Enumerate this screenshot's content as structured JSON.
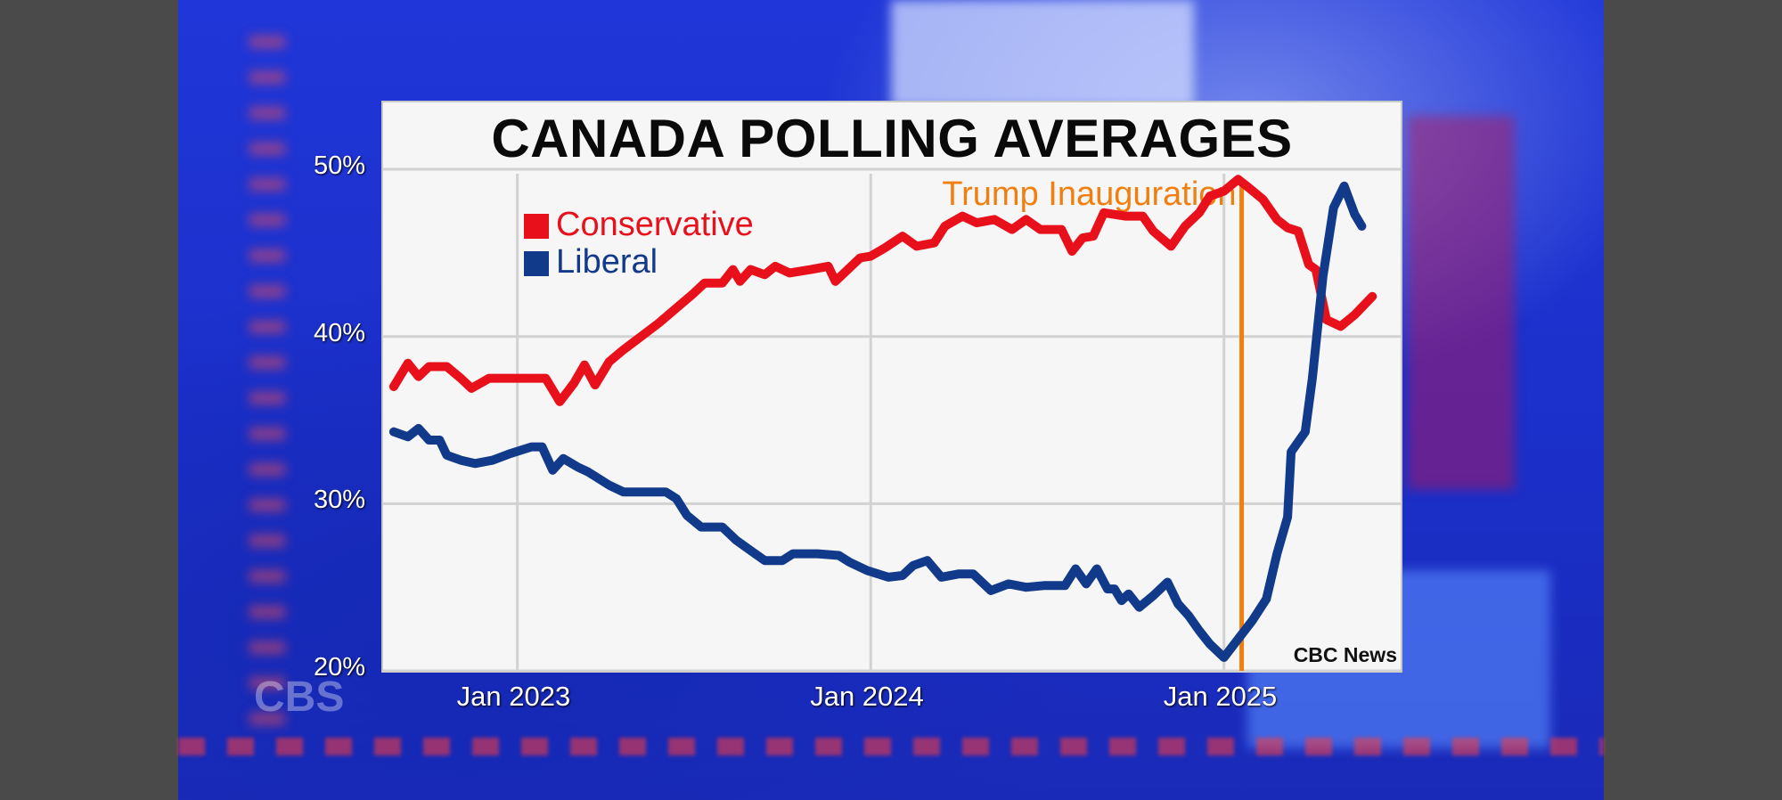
{
  "chart_data": {
    "type": "line",
    "title": "CANADA POLLING AVERAGES",
    "y_tick_labels": [
      "20%",
      "30%",
      "40%",
      "50%"
    ],
    "y_ticks": [
      20,
      30,
      40,
      50
    ],
    "ylim": [
      20,
      54
    ],
    "x_tick_labels": [
      "Jan 2023",
      "Jan 2024",
      "Jan 2025"
    ],
    "x_ticks": [
      2023.0,
      2024.0,
      2025.0
    ],
    "xlim": [
      2022.62,
      2025.5
    ],
    "legend": [
      {
        "name": "Conservative",
        "color": "#e8101b"
      },
      {
        "name": "Liberal",
        "color": "#123a8a"
      }
    ],
    "annotation": {
      "label": "Trump Inauguration",
      "x": 2025.05,
      "color": "#f07f10"
    },
    "source_label": "CBC News",
    "series": [
      {
        "name": "Conservative",
        "color": "#e8101b",
        "points": [
          [
            2022.65,
            37.0
          ],
          [
            2022.69,
            38.4
          ],
          [
            2022.72,
            37.6
          ],
          [
            2022.75,
            38.2
          ],
          [
            2022.8,
            38.2
          ],
          [
            2022.84,
            37.5
          ],
          [
            2022.87,
            36.9
          ],
          [
            2022.92,
            37.5
          ],
          [
            2022.96,
            37.5
          ],
          [
            2023.0,
            37.5
          ],
          [
            2023.04,
            37.5
          ],
          [
            2023.08,
            37.5
          ],
          [
            2023.12,
            36.1
          ],
          [
            2023.16,
            37.2
          ],
          [
            2023.19,
            38.3
          ],
          [
            2023.22,
            37.1
          ],
          [
            2023.26,
            38.5
          ],
          [
            2023.3,
            39.2
          ],
          [
            2023.35,
            40.0
          ],
          [
            2023.4,
            40.8
          ],
          [
            2023.45,
            41.7
          ],
          [
            2023.5,
            42.6
          ],
          [
            2023.53,
            43.2
          ],
          [
            2023.58,
            43.2
          ],
          [
            2023.61,
            44.0
          ],
          [
            2023.63,
            43.3
          ],
          [
            2023.66,
            44.0
          ],
          [
            2023.7,
            43.7
          ],
          [
            2023.73,
            44.2
          ],
          [
            2023.77,
            43.8
          ],
          [
            2023.83,
            44.0
          ],
          [
            2023.88,
            44.2
          ],
          [
            2023.9,
            43.3
          ],
          [
            2023.93,
            43.9
          ],
          [
            2023.97,
            44.7
          ],
          [
            2024.0,
            44.8
          ],
          [
            2024.04,
            45.3
          ],
          [
            2024.09,
            46.0
          ],
          [
            2024.13,
            45.4
          ],
          [
            2024.18,
            45.6
          ],
          [
            2024.21,
            46.6
          ],
          [
            2024.26,
            47.2
          ],
          [
            2024.3,
            46.8
          ],
          [
            2024.35,
            47.0
          ],
          [
            2024.4,
            46.4
          ],
          [
            2024.44,
            47.0
          ],
          [
            2024.48,
            46.4
          ],
          [
            2024.54,
            46.4
          ],
          [
            2024.57,
            45.1
          ],
          [
            2024.6,
            45.9
          ],
          [
            2024.63,
            46.0
          ],
          [
            2024.66,
            47.4
          ],
          [
            2024.72,
            47.2
          ],
          [
            2024.77,
            47.2
          ],
          [
            2024.8,
            46.3
          ],
          [
            2024.85,
            45.4
          ],
          [
            2024.89,
            46.6
          ],
          [
            2024.93,
            47.4
          ],
          [
            2024.96,
            48.4
          ],
          [
            2025.0,
            48.7
          ],
          [
            2025.04,
            49.4
          ],
          [
            2025.07,
            48.9
          ],
          [
            2025.11,
            48.2
          ],
          [
            2025.15,
            47.0
          ],
          [
            2025.18,
            46.5
          ],
          [
            2025.21,
            46.3
          ],
          [
            2025.24,
            44.3
          ],
          [
            2025.26,
            44.0
          ],
          [
            2025.29,
            41.0
          ],
          [
            2025.33,
            40.6
          ],
          [
            2025.37,
            41.3
          ],
          [
            2025.42,
            42.4
          ]
        ]
      },
      {
        "name": "Liberal",
        "color": "#123a8a",
        "points": [
          [
            2022.65,
            34.3
          ],
          [
            2022.69,
            34.0
          ],
          [
            2022.72,
            34.5
          ],
          [
            2022.75,
            33.8
          ],
          [
            2022.78,
            33.8
          ],
          [
            2022.8,
            32.9
          ],
          [
            2022.84,
            32.6
          ],
          [
            2022.88,
            32.4
          ],
          [
            2022.93,
            32.6
          ],
          [
            2022.98,
            33.0
          ],
          [
            2023.04,
            33.4
          ],
          [
            2023.07,
            33.4
          ],
          [
            2023.1,
            32.0
          ],
          [
            2023.13,
            32.7
          ],
          [
            2023.17,
            32.2
          ],
          [
            2023.2,
            31.9
          ],
          [
            2023.26,
            31.1
          ],
          [
            2023.3,
            30.7
          ],
          [
            2023.36,
            30.7
          ],
          [
            2023.42,
            30.7
          ],
          [
            2023.45,
            30.3
          ],
          [
            2023.48,
            29.3
          ],
          [
            2023.52,
            28.6
          ],
          [
            2023.58,
            28.6
          ],
          [
            2023.62,
            27.8
          ],
          [
            2023.66,
            27.2
          ],
          [
            2023.7,
            26.6
          ],
          [
            2023.75,
            26.6
          ],
          [
            2023.78,
            27.0
          ],
          [
            2023.85,
            27.0
          ],
          [
            2023.91,
            26.9
          ],
          [
            2023.94,
            26.5
          ],
          [
            2023.99,
            26.0
          ],
          [
            2024.05,
            25.6
          ],
          [
            2024.09,
            25.7
          ],
          [
            2024.12,
            26.3
          ],
          [
            2024.16,
            26.6
          ],
          [
            2024.2,
            25.6
          ],
          [
            2024.25,
            25.8
          ],
          [
            2024.29,
            25.8
          ],
          [
            2024.34,
            24.8
          ],
          [
            2024.39,
            25.2
          ],
          [
            2024.44,
            25.0
          ],
          [
            2024.49,
            25.1
          ],
          [
            2024.55,
            25.1
          ],
          [
            2024.58,
            26.1
          ],
          [
            2024.61,
            25.2
          ],
          [
            2024.64,
            26.1
          ],
          [
            2024.67,
            24.9
          ],
          [
            2024.69,
            24.9
          ],
          [
            2024.71,
            24.2
          ],
          [
            2024.73,
            24.6
          ],
          [
            2024.76,
            23.8
          ],
          [
            2024.8,
            24.5
          ],
          [
            2024.84,
            25.3
          ],
          [
            2024.87,
            24.0
          ],
          [
            2024.9,
            23.3
          ],
          [
            2024.93,
            22.4
          ],
          [
            2024.96,
            21.6
          ],
          [
            2025.0,
            20.8
          ],
          [
            2025.04,
            21.9
          ],
          [
            2025.08,
            23.0
          ],
          [
            2025.12,
            24.3
          ],
          [
            2025.15,
            27.0
          ],
          [
            2025.18,
            29.2
          ],
          [
            2025.19,
            33.1
          ],
          [
            2025.23,
            34.3
          ],
          [
            2025.25,
            37.5
          ],
          [
            2025.28,
            43.6
          ],
          [
            2025.31,
            47.7
          ],
          [
            2025.34,
            49.0
          ],
          [
            2025.37,
            47.3
          ],
          [
            2025.39,
            46.6
          ]
        ]
      }
    ]
  },
  "branding": {
    "network_logo": "CBS"
  }
}
